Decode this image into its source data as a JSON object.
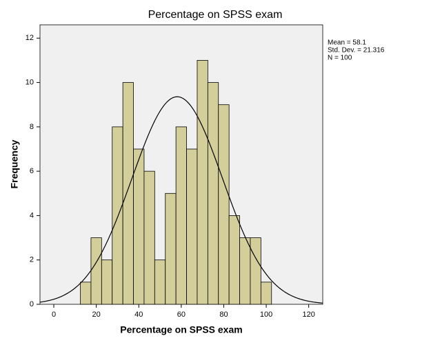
{
  "chart_data": {
    "type": "histogram",
    "title": "Percentage on SPSS exam",
    "x_label": "Percentage on SPSS exam",
    "y_label": "Frequency",
    "bins": [
      12.5,
      17.5,
      22.5,
      27.5,
      32.5,
      37.5,
      42.5,
      47.5,
      52.5,
      57.5,
      62.5,
      67.5,
      72.5,
      77.5,
      82.5,
      87.5,
      92.5,
      97.5,
      102.5
    ],
    "values": [
      1,
      3,
      2,
      8,
      10,
      7,
      6,
      2,
      5,
      8,
      7,
      11,
      10,
      9,
      4,
      3,
      3,
      1
    ],
    "color": "#d3ce9a",
    "xlim": [
      -6.5,
      126.6
    ],
    "xticks": [
      0,
      20,
      40,
      60,
      80,
      100,
      120
    ],
    "ylim": [
      0,
      12.6
    ],
    "yticks": [
      0,
      2,
      4,
      6,
      8,
      10,
      12
    ],
    "normal_curve": true,
    "stats": {
      "mean": {
        "value": 58.1,
        "label": "Mean = 58.1"
      },
      "sd": {
        "value": 21.316,
        "label": "Std. Dev. = 21.316"
      },
      "n": {
        "value": 100,
        "label": "N = 100"
      }
    }
  }
}
